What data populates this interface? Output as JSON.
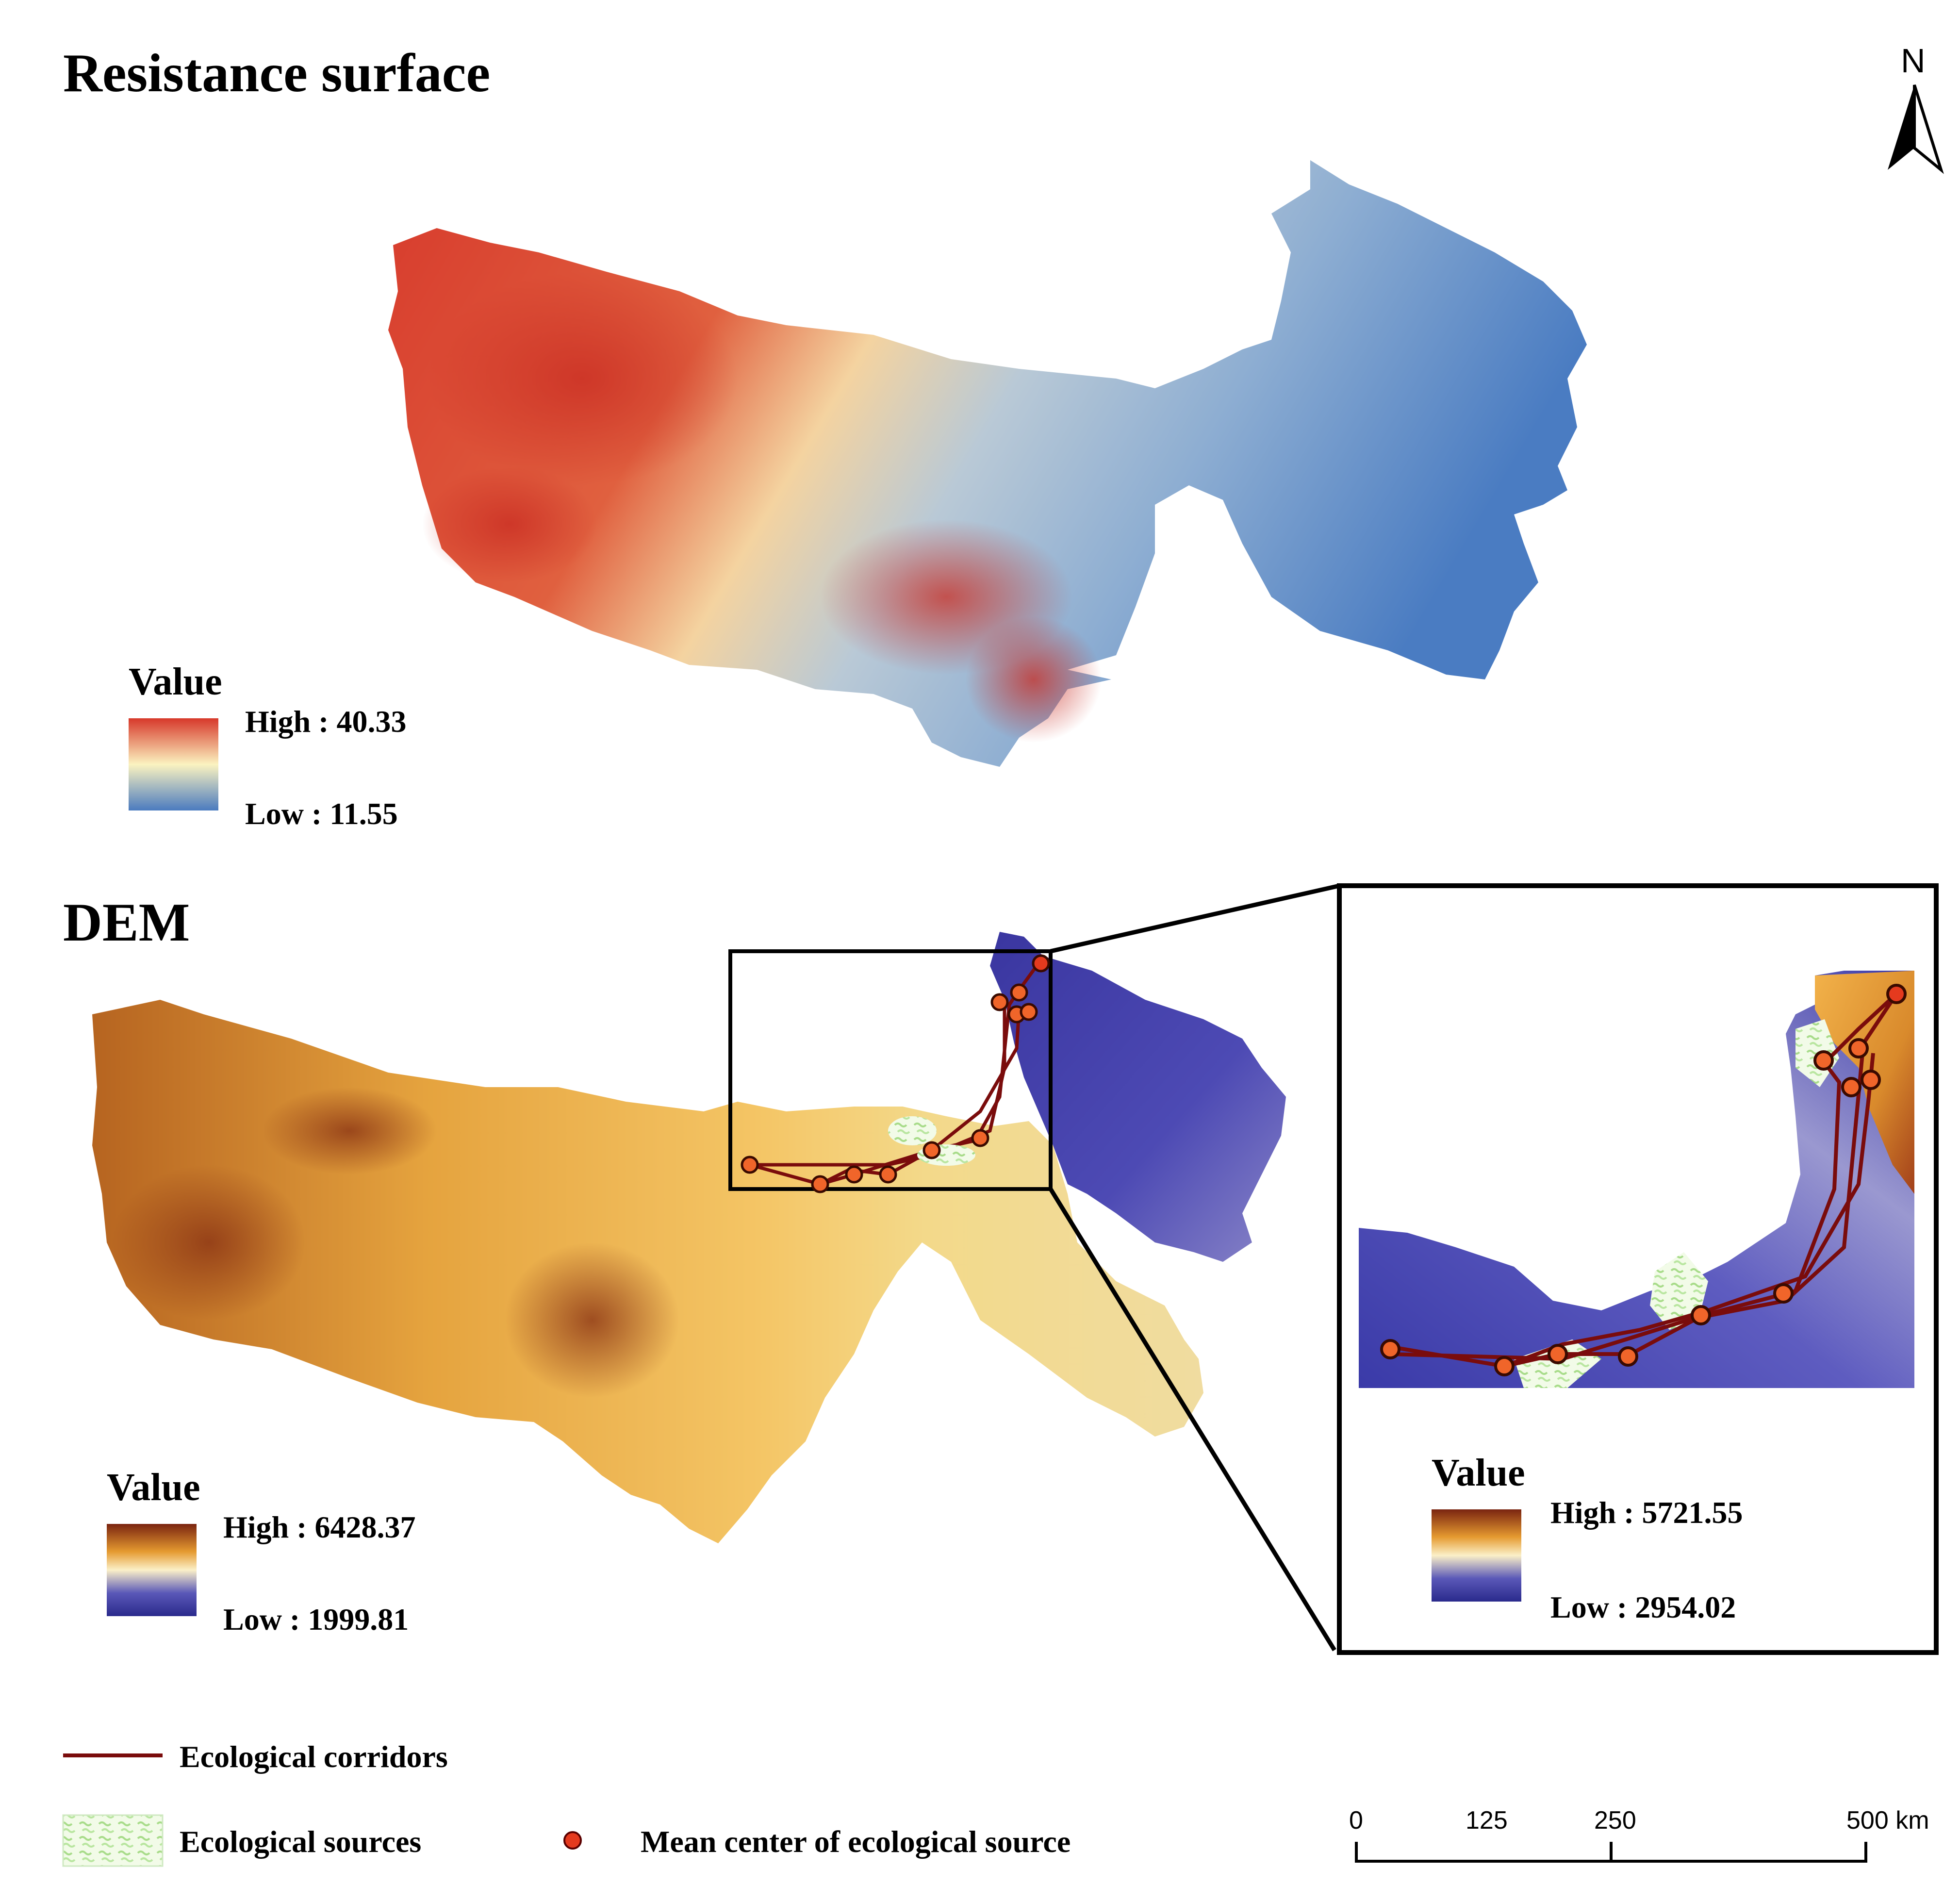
{
  "resistance_panel": {
    "title": "Resistance surface",
    "legend": {
      "title": "Value",
      "high_label": "High : 40.33",
      "low_label": "Low : 11.55"
    }
  },
  "dem_panel": {
    "title": "DEM",
    "legend": {
      "title": "Value",
      "high_label": "High : 6428.37",
      "low_label": "Low : 1999.81"
    }
  },
  "inset_panel": {
    "legend": {
      "title": "Value",
      "high_label": "High : 5721.55",
      "low_label": "Low : 2954.02"
    }
  },
  "north_arrow": {
    "label": "N"
  },
  "map_legend": {
    "corridors_label": "Ecological corridors",
    "sources_label": "Ecological sources",
    "mean_center_label": "Mean center of ecological source"
  },
  "scale_bar": {
    "ticks": [
      "0",
      "125",
      "250",
      "500 km"
    ]
  },
  "colors": {
    "resistance_high": "#d7382a",
    "resistance_mid": "#fbf3c0",
    "resistance_low": "#4b7bbf",
    "dem_high": "#7a2410",
    "dem_mid": "#f6c25a",
    "dem_low": "#2a2a8c",
    "corridor": "#7a0c0c",
    "mean_center": "#e53a1e",
    "node_fill": "#f0652a"
  }
}
